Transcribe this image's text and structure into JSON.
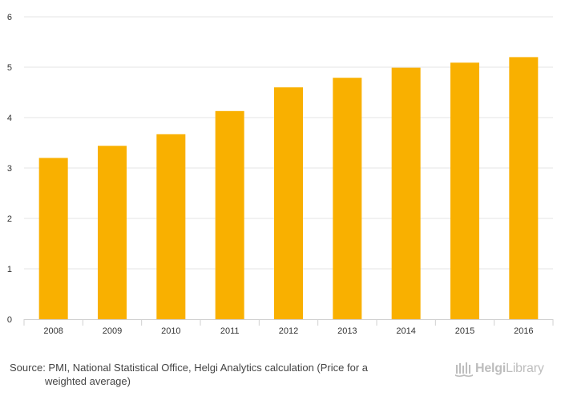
{
  "chart_data": {
    "type": "bar",
    "categories": [
      "2008",
      "2009",
      "2010",
      "2011",
      "2012",
      "2013",
      "2014",
      "2015",
      "2016"
    ],
    "values": [
      3.2,
      3.44,
      3.67,
      4.13,
      4.6,
      4.79,
      4.99,
      5.09,
      5.2
    ],
    "title": "",
    "xlabel": "",
    "ylabel": "",
    "ylim": [
      0,
      6
    ],
    "yticks": [
      0,
      1,
      2,
      3,
      4,
      5,
      6
    ],
    "grid": true,
    "legend": "none",
    "bar_color": "#f9b000",
    "grid_color": "#e6e6e6"
  },
  "footer": {
    "source_line1": "Source: PMI, National Statistical Office, Helgi Analytics calculation (Price for a",
    "source_line2": "weighted average)",
    "logo_brand": "Helgi",
    "logo_library": "Library",
    "logo_icon": "helgi-library-logo-icon"
  }
}
